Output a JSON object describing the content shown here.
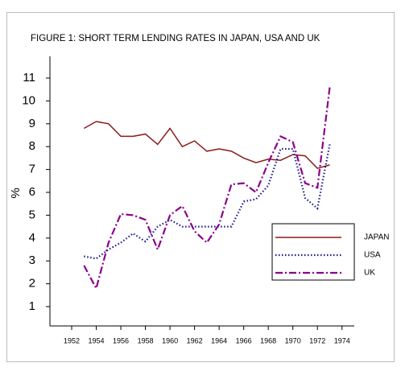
{
  "chart_data": {
    "type": "line",
    "title": "FIGURE 1: SHORT TERM LENDING RATES IN JAPAN, USA AND UK",
    "y_label": "%",
    "x": [
      1953,
      1954,
      1955,
      1956,
      1957,
      1958,
      1959,
      1960,
      1961,
      1962,
      1963,
      1964,
      1965,
      1966,
      1967,
      1968,
      1969,
      1970,
      1971,
      1972,
      1973
    ],
    "series": [
      {
        "name": "JAPAN",
        "color": "#8b1a1a",
        "dash": "solid",
        "values": [
          8.8,
          9.1,
          9.0,
          8.45,
          8.45,
          8.55,
          8.1,
          8.8,
          8.0,
          8.25,
          7.8,
          7.9,
          7.8,
          7.5,
          7.3,
          7.45,
          7.4,
          7.65,
          7.6,
          7.05,
          7.2
        ]
      },
      {
        "name": "USA",
        "color": "#1a1a8b",
        "dash": "dotted",
        "values": [
          3.2,
          3.1,
          3.5,
          3.8,
          4.2,
          3.85,
          4.5,
          4.8,
          4.5,
          4.5,
          4.5,
          4.5,
          4.5,
          5.6,
          5.7,
          6.3,
          7.9,
          7.9,
          5.75,
          5.3,
          8.1
        ]
      },
      {
        "name": "UK",
        "color": "#8b008b",
        "dash": "dashdot",
        "values": [
          2.8,
          1.8,
          3.8,
          5.05,
          5.0,
          4.8,
          3.5,
          5.0,
          5.4,
          4.3,
          3.8,
          4.6,
          6.35,
          6.4,
          6.0,
          7.3,
          8.45,
          8.2,
          6.4,
          6.2,
          10.6
        ]
      }
    ],
    "xlim": [
      1950,
      1975
    ],
    "xticks": [
      1952,
      1954,
      1956,
      1958,
      1960,
      1962,
      1964,
      1966,
      1968,
      1970,
      1972,
      1974
    ],
    "ylim": [
      0,
      12
    ],
    "yticks": [
      1,
      2,
      3,
      4,
      5,
      6,
      7,
      8,
      9,
      10,
      11
    ],
    "grid": false,
    "legend": "right"
  }
}
